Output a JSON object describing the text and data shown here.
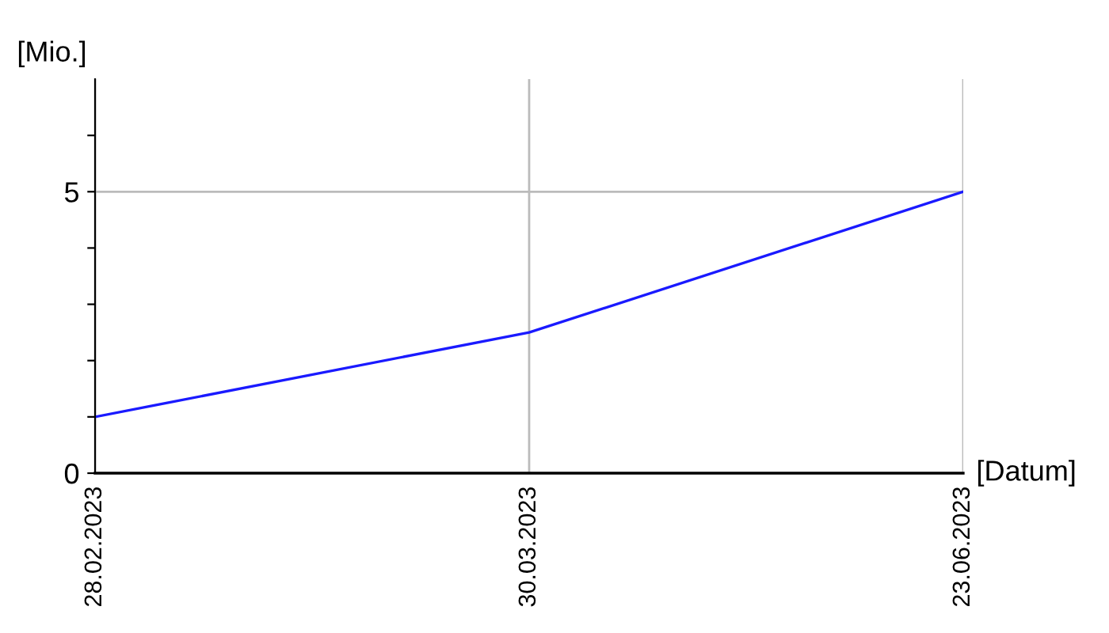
{
  "chart_data": {
    "type": "line",
    "xlabel": "[Datum]",
    "ylabel": "[Mio.]",
    "categories": [
      "28.02.2023",
      "30.03.2023",
      "23.06.2023"
    ],
    "series": [
      {
        "color": "#1a1aff",
        "values": [
          1.0,
          2.5,
          5.0
        ]
      }
    ],
    "ylim": [
      0,
      7
    ],
    "yticks": [
      0,
      {
        "value": 1,
        "label": null
      },
      {
        "value": 2,
        "label": null
      },
      {
        "value": 3,
        "label": null
      },
      {
        "value": 4,
        "label": null
      },
      5,
      {
        "value": 6,
        "label": null
      }
    ],
    "grid": true,
    "marker": "none",
    "line_style": "solid",
    "legend": false
  }
}
